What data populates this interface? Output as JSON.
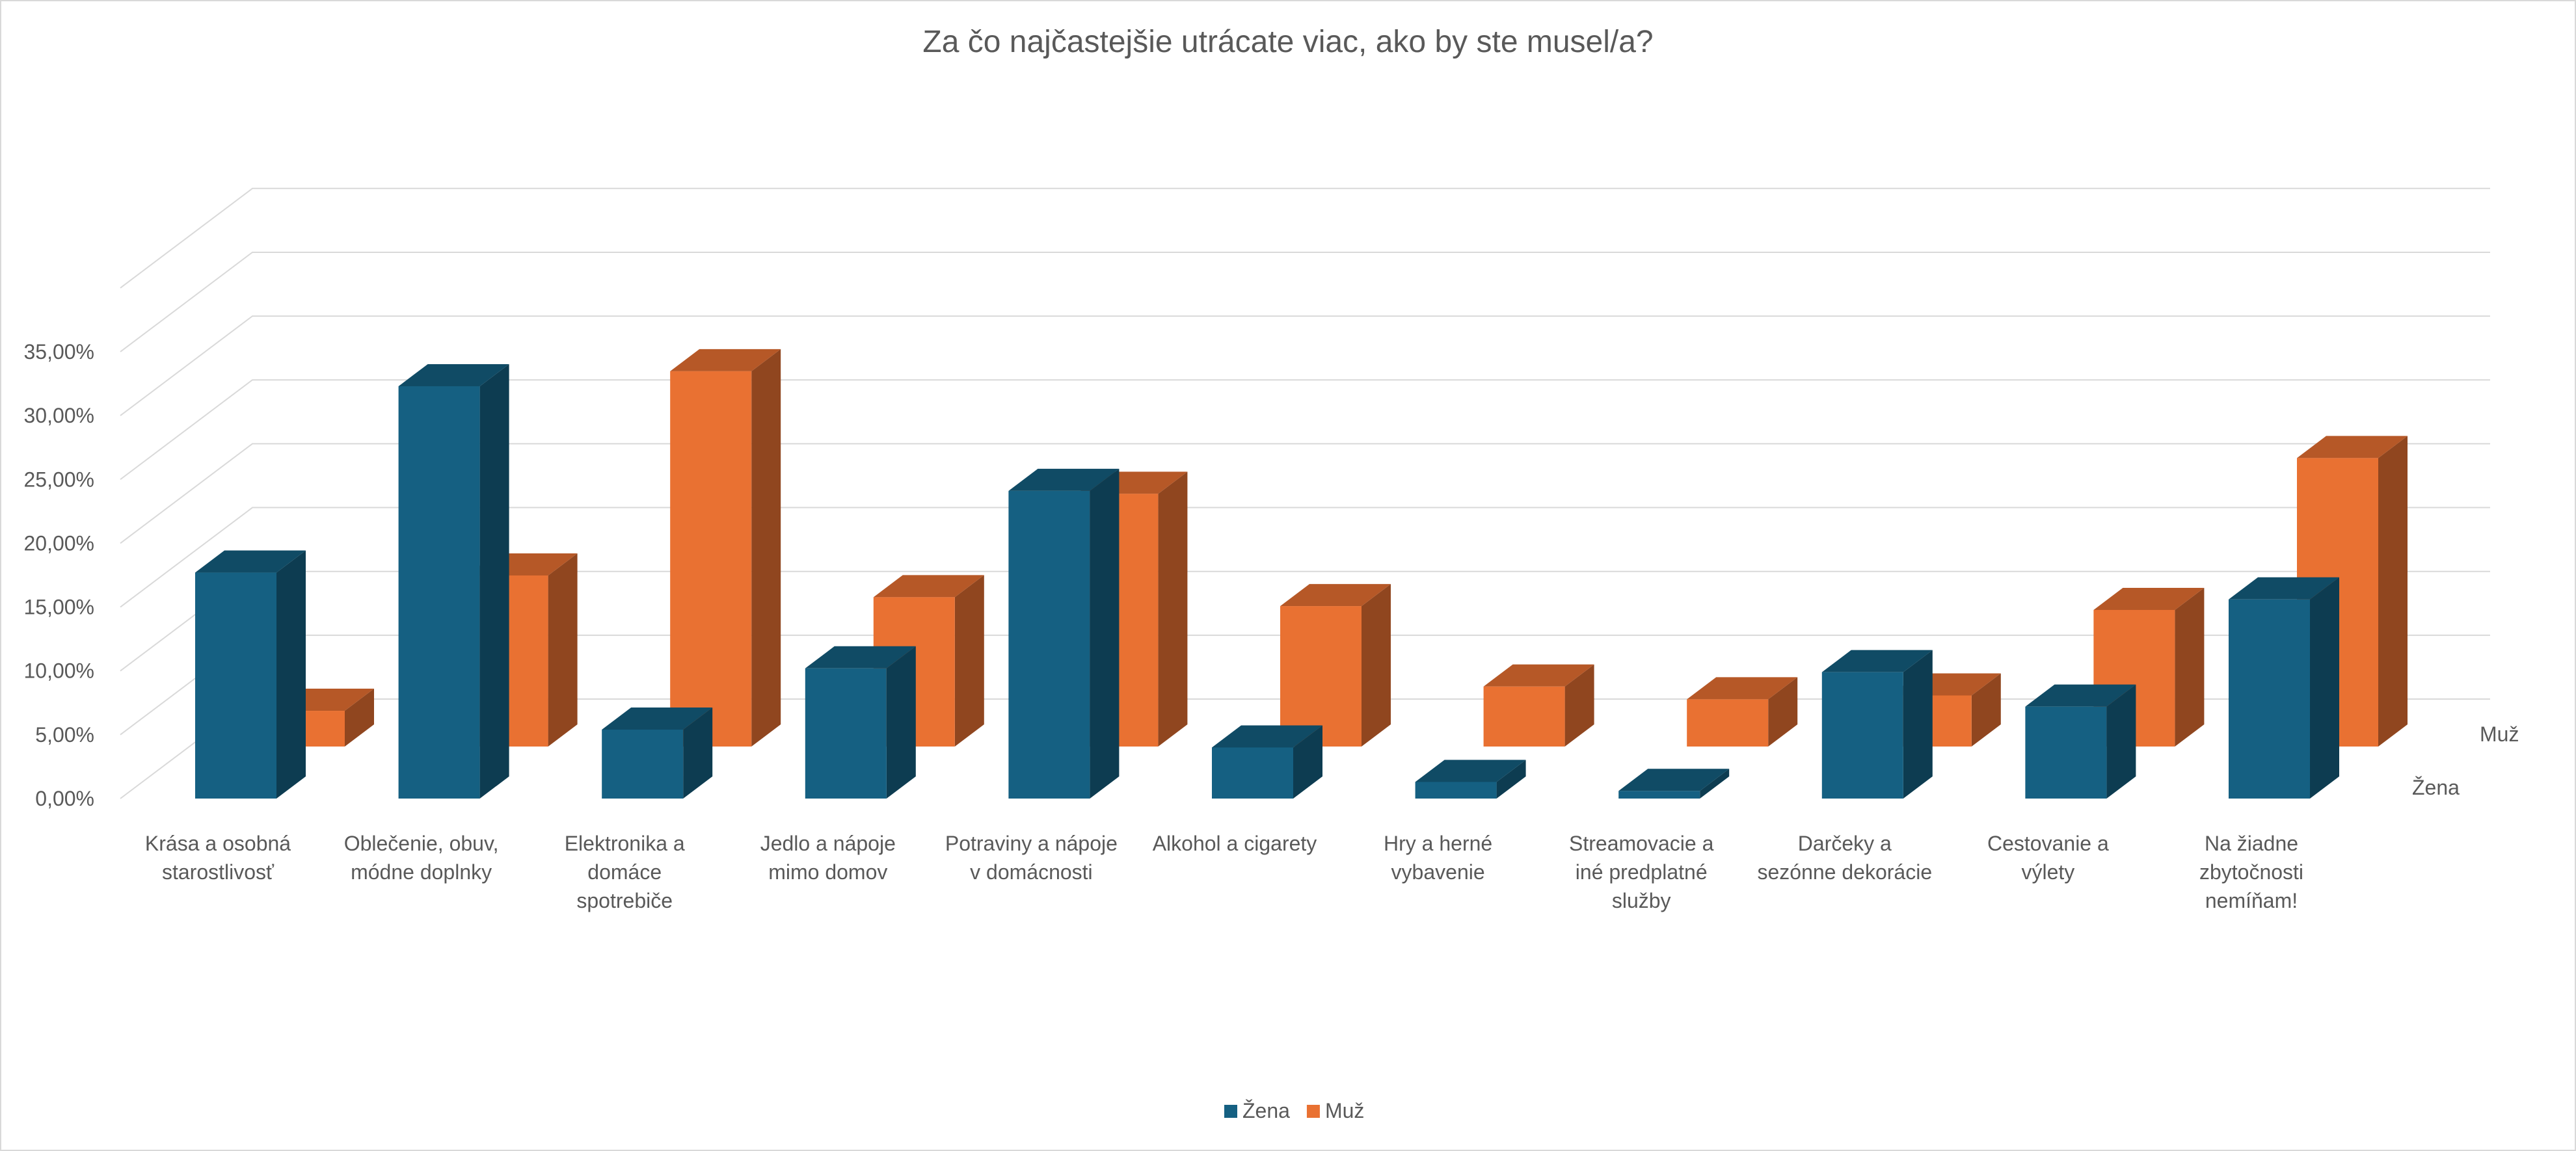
{
  "chart_data": {
    "type": "bar",
    "title": "Za čo najčastejšie utrácate viac, ako by ste musel/a?",
    "categories": [
      "Krása a osobná starostlivosť",
      "Oblečenie, obuv, módne doplnky",
      "Elektronika a domáce spotrebiče",
      "Jedlo a nápoje mimo domov",
      "Potraviny a nápoje v domácnosti",
      "Alkohol a cigarety",
      "Hry a herné vybavenie",
      "Streamovacie a iné predplatné služby",
      "Darčeky a sezónne dekorácie",
      "Cestovanie a výlety",
      "Na žiadne zbytočnosti nemíňam!"
    ],
    "series": [
      {
        "name": "Žena",
        "color": "#156082",
        "values": [
          17.7,
          32.3,
          5.4,
          10.2,
          24.1,
          4.0,
          1.3,
          0.6,
          9.9,
          7.2,
          15.6
        ]
      },
      {
        "name": "Muž",
        "color": "#E97132",
        "values": [
          2.8,
          13.4,
          29.4,
          11.7,
          19.8,
          11.0,
          4.7,
          3.7,
          4.0,
          10.7,
          22.6
        ]
      }
    ],
    "ylim": [
      0,
      35
    ],
    "yticks": [
      "0,00%",
      "5,00%",
      "10,00%",
      "15,00%",
      "20,00%",
      "25,00%",
      "30,00%",
      "35,00%"
    ],
    "depth_axis_labels": [
      "Žena",
      "Muž"
    ],
    "grid": true,
    "legend": "bottom",
    "style": "3d-clustered-column"
  }
}
